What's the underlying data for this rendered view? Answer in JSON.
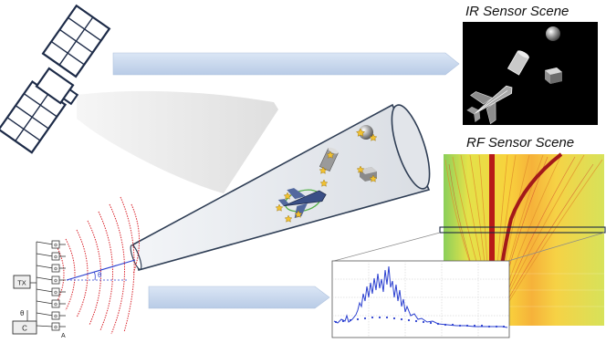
{
  "figure": {
    "ir_title": "IR Sensor Scene",
    "rf_title": "RF Sensor Scene",
    "labels": {
      "tx": "TX",
      "controller": "C",
      "theta": "θ",
      "array": "A",
      "beam_angle": "θ"
    }
  },
  "colors": {
    "arrow_fill": "#c9d9ee",
    "sensor_cone": "#e8e8e8",
    "radar_cone_stroke": "#2f3e55",
    "wavefront": "#d9242c",
    "ir_background": "#000000",
    "rf_heatmap_base": "#f6e04a",
    "rf_track": "#b81a18",
    "spectrum_line": "#2a3fd0"
  },
  "icons": [
    "satellite-icon",
    "target-aircraft-icon",
    "ir-sphere-icon",
    "ir-cylinder-icon",
    "ir-box-icon"
  ]
}
